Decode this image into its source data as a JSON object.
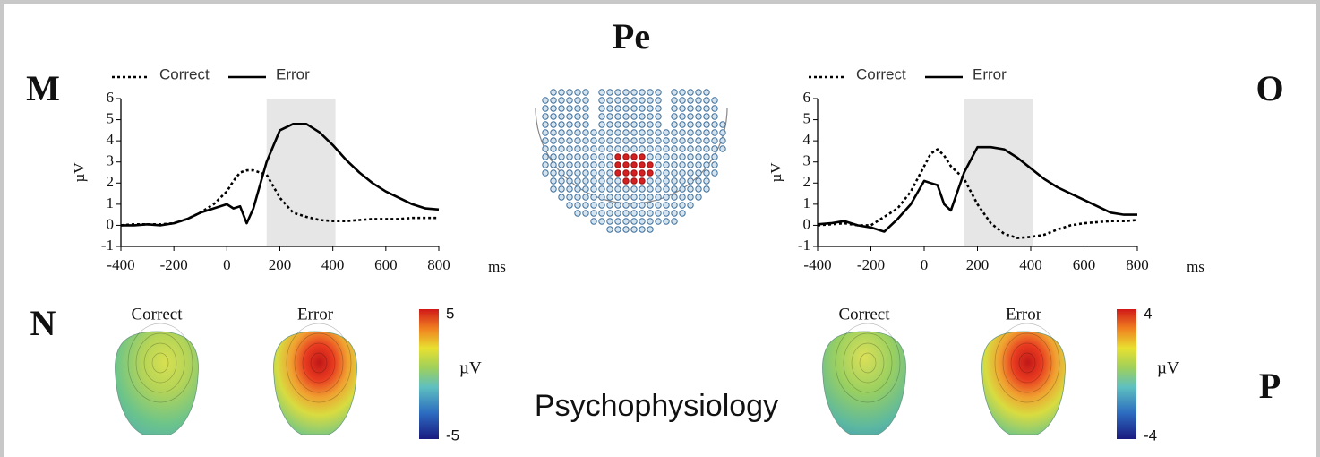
{
  "title": "Pe",
  "panel_labels": [
    "M",
    "N",
    "O",
    "P"
  ],
  "journal": "Psychophysiology",
  "chart_data": [
    {
      "type": "line",
      "x_label": "ms",
      "y_label": "µV",
      "xlim": [
        -400,
        800
      ],
      "ylim": [
        -1,
        6
      ],
      "xticks": [
        -400,
        -200,
        0,
        200,
        400,
        600,
        800
      ],
      "yticks": [
        -1,
        0,
        1,
        2,
        3,
        4,
        5,
        6
      ],
      "span": [
        150,
        410
      ],
      "x": [
        -400,
        -350,
        -300,
        -250,
        -200,
        -150,
        -100,
        -50,
        0,
        25,
        50,
        75,
        100,
        150,
        200,
        250,
        300,
        350,
        400,
        450,
        500,
        550,
        600,
        650,
        700,
        750,
        800
      ],
      "series": [
        {
          "name": "Correct",
          "color": "#000000",
          "style": "dotted",
          "values": [
            0,
            0.05,
            0.05,
            0.05,
            0.1,
            0.3,
            0.6,
            1.0,
            1.6,
            2.1,
            2.5,
            2.6,
            2.6,
            2.4,
            1.3,
            0.6,
            0.4,
            0.25,
            0.2,
            0.2,
            0.25,
            0.3,
            0.3,
            0.3,
            0.35,
            0.35,
            0.35
          ]
        },
        {
          "name": "Error",
          "color": "#000000",
          "style": "solid",
          "values": [
            0,
            0,
            0.05,
            0,
            0.1,
            0.3,
            0.6,
            0.8,
            1.0,
            0.8,
            0.9,
            0.1,
            0.8,
            3.0,
            4.5,
            4.8,
            4.8,
            4.4,
            3.8,
            3.1,
            2.5,
            2.0,
            1.6,
            1.3,
            1.0,
            0.8,
            0.75
          ]
        }
      ]
    },
    {
      "type": "line",
      "x_label": "ms",
      "y_label": "µV",
      "xlim": [
        -400,
        800
      ],
      "ylim": [
        -1,
        6
      ],
      "xticks": [
        -400,
        -200,
        0,
        200,
        400,
        600,
        800
      ],
      "yticks": [
        -1,
        0,
        1,
        2,
        3,
        4,
        5,
        6
      ],
      "span": [
        150,
        410
      ],
      "x": [
        -400,
        -350,
        -300,
        -250,
        -200,
        -150,
        -100,
        -50,
        0,
        25,
        50,
        75,
        100,
        150,
        200,
        250,
        300,
        350,
        400,
        450,
        500,
        550,
        600,
        650,
        700,
        750,
        800
      ],
      "series": [
        {
          "name": "Correct",
          "color": "#000000",
          "style": "dotted",
          "values": [
            0,
            0.05,
            0.1,
            0,
            0,
            0.4,
            0.8,
            1.6,
            2.8,
            3.4,
            3.6,
            3.3,
            2.8,
            2.2,
            1.0,
            0.1,
            -0.4,
            -0.6,
            -0.55,
            -0.45,
            -0.2,
            0,
            0.1,
            0.15,
            0.2,
            0.2,
            0.25
          ]
        },
        {
          "name": "Error",
          "color": "#000000",
          "style": "solid",
          "values": [
            0.05,
            0.1,
            0.2,
            0,
            -0.1,
            -0.3,
            0.3,
            1.0,
            2.1,
            2.0,
            1.9,
            1.0,
            0.7,
            2.5,
            3.7,
            3.7,
            3.6,
            3.2,
            2.7,
            2.2,
            1.8,
            1.5,
            1.2,
            0.9,
            0.6,
            0.5,
            0.5
          ]
        }
      ]
    }
  ],
  "topomaps": [
    {
      "labels": [
        "Correct",
        "Error"
      ],
      "colorbar": {
        "lim": [
          -5,
          5
        ],
        "label": "µV"
      }
    },
    {
      "labels": [
        "Correct",
        "Error"
      ],
      "colorbar": {
        "lim": [
          -4,
          4
        ],
        "label": "µV"
      }
    }
  ]
}
